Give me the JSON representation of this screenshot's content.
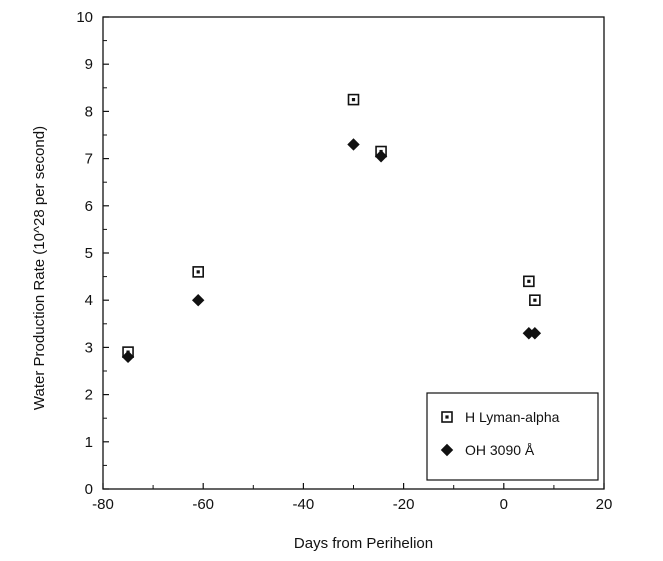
{
  "chart_data": {
    "type": "scatter",
    "title": "",
    "xlabel": "Days from Perihelion",
    "ylabel": "Water Production Rate (10^28 per second)",
    "xlim": [
      -80,
      20
    ],
    "ylim": [
      0,
      10
    ],
    "x_ticks": [
      -80,
      -60,
      -40,
      -20,
      0,
      20
    ],
    "x_tick_labels": [
      "-80",
      "-60",
      "-40",
      "-20",
      "0",
      "20"
    ],
    "y_ticks": [
      0,
      1,
      2,
      3,
      4,
      5,
      6,
      7,
      8,
      9,
      10
    ],
    "y_tick_labels": [
      "0",
      "1",
      "2",
      "3",
      "4",
      "5",
      "6",
      "7",
      "8",
      "9",
      "10"
    ],
    "grid": false,
    "legend_position": "bottom-right",
    "series": [
      {
        "name": "H Lyman-alpha",
        "marker": "open-square",
        "color": "#111111",
        "points": [
          {
            "x": -75,
            "y": 2.9
          },
          {
            "x": -61,
            "y": 4.6
          },
          {
            "x": -30,
            "y": 8.25
          },
          {
            "x": -24.5,
            "y": 7.15
          },
          {
            "x": 5,
            "y": 4.4
          },
          {
            "x": 6.2,
            "y": 4.0
          }
        ]
      },
      {
        "name": "OH 3090 Å",
        "marker": "filled-diamond",
        "color": "#111111",
        "points": [
          {
            "x": -75,
            "y": 2.8
          },
          {
            "x": -61,
            "y": 4.0
          },
          {
            "x": -30,
            "y": 7.3
          },
          {
            "x": -24.5,
            "y": 7.05
          },
          {
            "x": 5,
            "y": 3.3
          },
          {
            "x": 6.2,
            "y": 3.3
          }
        ]
      }
    ]
  }
}
